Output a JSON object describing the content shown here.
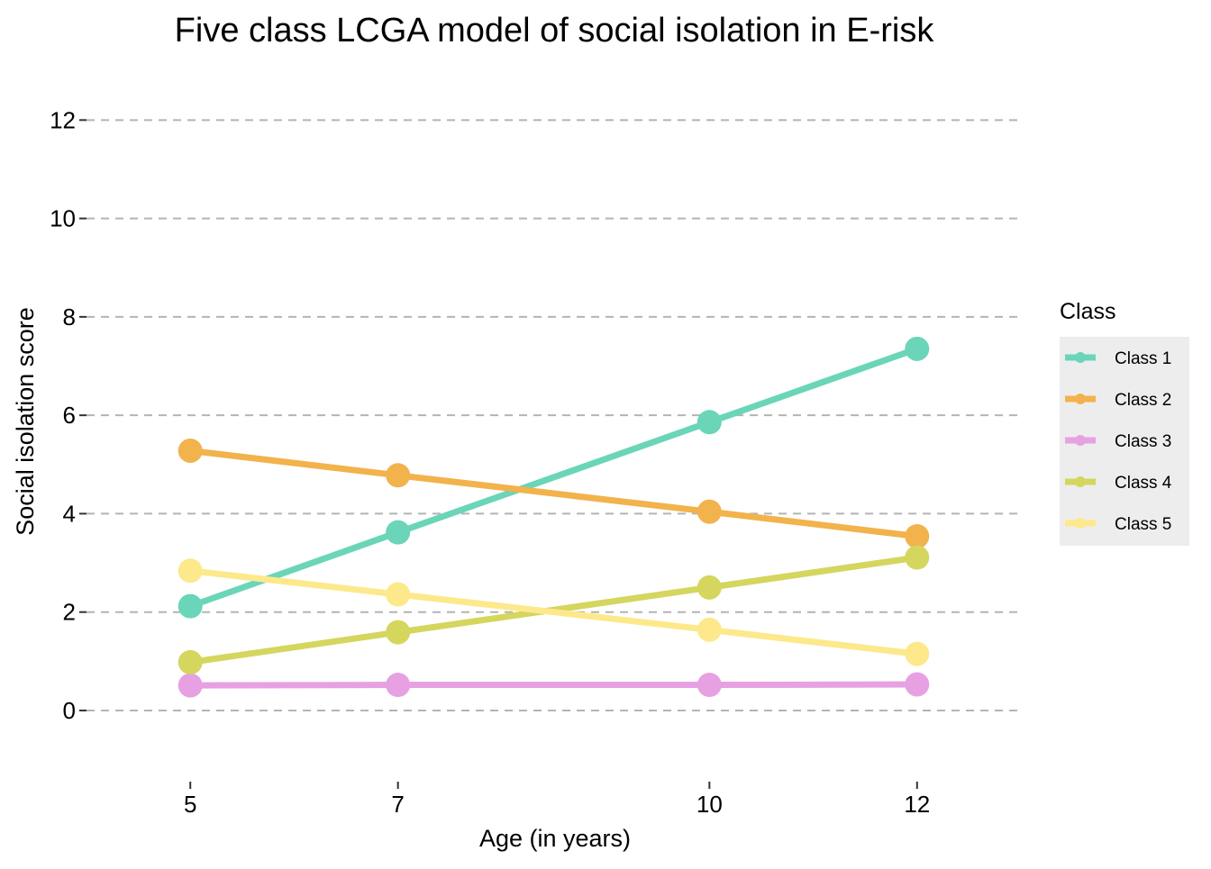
{
  "chart_data": {
    "type": "line",
    "title": "Five class LCGA model of social isolation in E-risk",
    "xlabel": "Age (in years)",
    "ylabel": "Social isolation score",
    "x": [
      5,
      7,
      10,
      12
    ],
    "x_ticks": [
      "5",
      "7",
      "10",
      "12"
    ],
    "xlim": [
      4,
      13
    ],
    "ylim": [
      -1.3,
      12.5
    ],
    "y_ticks": [
      "0",
      "2",
      "4",
      "6",
      "8",
      "10",
      "12"
    ],
    "grid": "horizontal dashed",
    "legend_title": "Class",
    "legend_position": "right",
    "series": [
      {
        "name": "Class 1",
        "color": "#6ad5b8",
        "values": [
          2.12,
          3.62,
          5.86,
          7.35
        ]
      },
      {
        "name": "Class 2",
        "color": "#f2b24c",
        "values": [
          5.28,
          4.78,
          4.04,
          3.54
        ]
      },
      {
        "name": "Class 3",
        "color": "#e7a1e2",
        "values": [
          0.51,
          0.52,
          0.52,
          0.53
        ]
      },
      {
        "name": "Class 4",
        "color": "#d4d65e",
        "values": [
          0.98,
          1.59,
          2.5,
          3.11
        ]
      },
      {
        "name": "Class 5",
        "color": "#fde98b",
        "values": [
          2.84,
          2.36,
          1.64,
          1.15
        ]
      }
    ]
  }
}
